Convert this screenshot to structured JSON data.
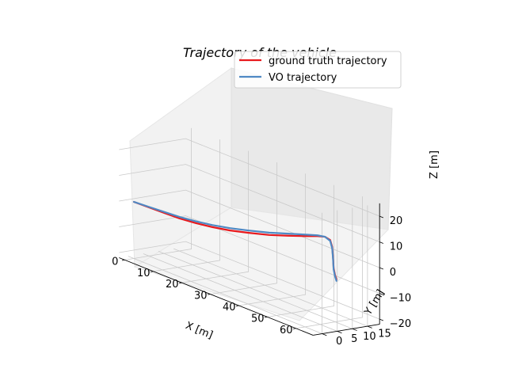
{
  "chart_data": {
    "type": "line",
    "projection": "3d",
    "title": "Trajectory of the vehicle",
    "xlabel": "X [m]",
    "ylabel": "Y [m]",
    "zlabel": "Z [m]",
    "x_ticks": [
      "0",
      "10",
      "20",
      "30",
      "40",
      "50",
      "60"
    ],
    "y_ticks": [
      "0",
      "5",
      "10",
      "15"
    ],
    "z_ticks": [
      "20",
      "10",
      "0",
      "−10",
      "−20"
    ],
    "xlim": [
      -2,
      66
    ],
    "ylim": [
      -3,
      19
    ],
    "zlim": [
      -22,
      25
    ],
    "grid": true,
    "legend_position": "top-right",
    "colors": {
      "ground_truth": "#e8191d",
      "vo": "#4f89c4"
    },
    "series": [
      {
        "name": "ground truth trajectory",
        "points": [
          [
            0,
            0,
            0
          ],
          [
            5,
            0.3,
            0
          ],
          [
            10,
            0.6,
            0
          ],
          [
            15,
            1,
            0
          ],
          [
            20,
            1.6,
            0.3
          ],
          [
            25,
            2.4,
            0.8
          ],
          [
            30,
            3.5,
            1.5
          ],
          [
            35,
            5,
            2.5
          ],
          [
            40,
            7,
            3.5
          ],
          [
            44,
            9.5,
            4.5
          ],
          [
            47,
            12,
            5.2
          ],
          [
            49,
            14.5,
            5.6
          ],
          [
            50,
            16,
            5.5
          ],
          [
            51,
            16.8,
            4.5
          ],
          [
            51.5,
            17,
            2
          ],
          [
            51.8,
            17,
            -2
          ],
          [
            52,
            17,
            -6
          ],
          [
            52.5,
            17,
            -8.5
          ],
          [
            53,
            17,
            -10
          ]
        ]
      },
      {
        "name": "VO trajectory",
        "points": [
          [
            0,
            0,
            0
          ],
          [
            5,
            0.3,
            0.2
          ],
          [
            10,
            0.6,
            0.4
          ],
          [
            15,
            1,
            0.6
          ],
          [
            20,
            1.6,
            1.0
          ],
          [
            25,
            2.4,
            1.6
          ],
          [
            30,
            3.5,
            2.4
          ],
          [
            35,
            5,
            3.4
          ],
          [
            40,
            7,
            4.4
          ],
          [
            44,
            9.5,
            5.3
          ],
          [
            47,
            12,
            5.8
          ],
          [
            49,
            14.5,
            5.9
          ],
          [
            50,
            16,
            5.5
          ],
          [
            51,
            16.8,
            4.2
          ],
          [
            51.5,
            17,
            1.5
          ],
          [
            51.8,
            17,
            -2.5
          ],
          [
            52,
            17,
            -6.5
          ],
          [
            52.5,
            17,
            -9
          ],
          [
            53,
            17,
            -10.5
          ]
        ]
      }
    ]
  }
}
